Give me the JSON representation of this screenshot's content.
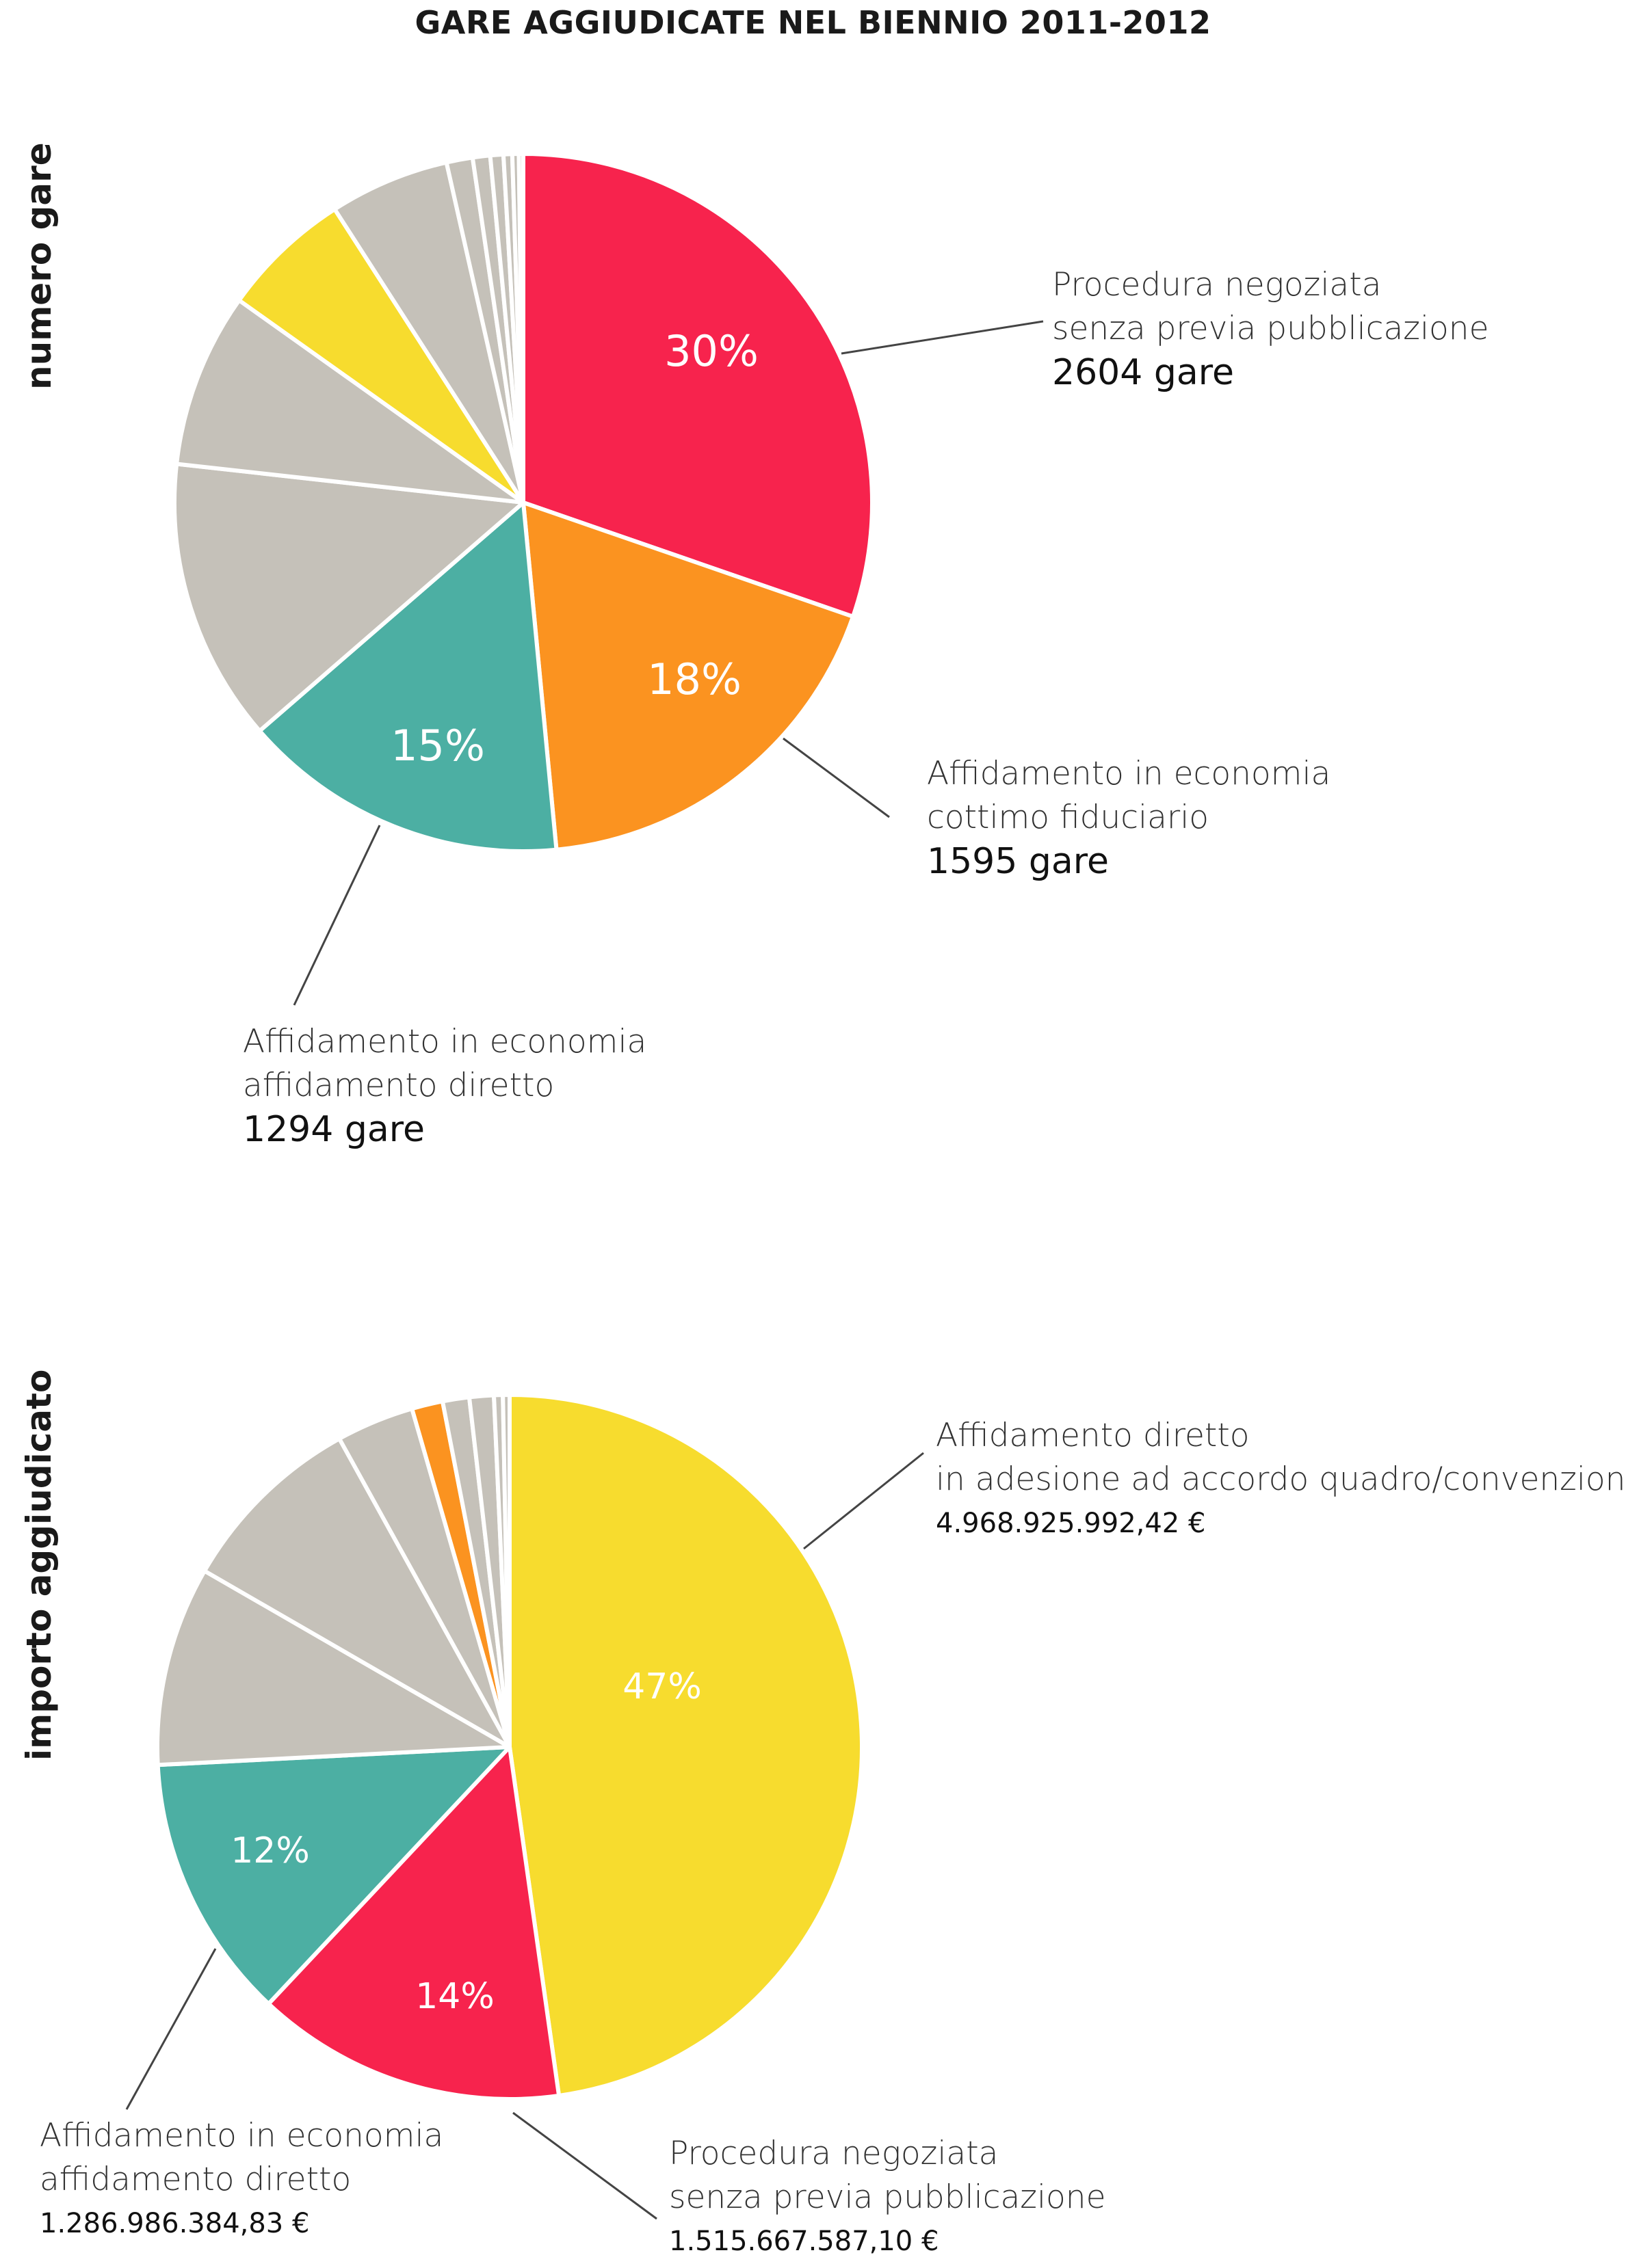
{
  "title": "GARE AGGIUDICATE NEL BIENNIO 2011-2012",
  "chart_data": [
    {
      "type": "pie",
      "side_label": "numero gare",
      "slices": [
        {
          "value": 30,
          "pct_label": "30%",
          "color": "#f7234d",
          "label": [
            "Procedura negoziata",
            "senza previa pubblicazione"
          ],
          "value_label": "2604 gare"
        },
        {
          "value": 18,
          "pct_label": "18%",
          "color": "#fb9320",
          "label": [
            "Affidamento in economia",
            "cottimo fiduciario"
          ],
          "value_label": "1595 gare"
        },
        {
          "value": 15,
          "pct_label": "15%",
          "color": "#4cafa3",
          "label": [
            "Affidamento in economia",
            "affidamento diretto"
          ],
          "value_label": "1294 gare"
        },
        {
          "value": 13,
          "color": "#c5c1b9"
        },
        {
          "value": 8,
          "color": "#c5c1b9"
        },
        {
          "value": 6,
          "color": "#f7dc2e"
        },
        {
          "value": 5.5,
          "color": "#c5c1b9"
        },
        {
          "value": 1.2,
          "color": "#c5c1b9"
        },
        {
          "value": 0.8,
          "color": "#c5c1b9"
        },
        {
          "value": 0.6,
          "color": "#c5c1b9"
        },
        {
          "value": 0.4,
          "color": "#c5c1b9"
        },
        {
          "value": 0.3,
          "color": "#c5c1b9"
        },
        {
          "value": 0.2,
          "color": "#c5c1b9"
        }
      ]
    },
    {
      "type": "pie",
      "side_label": "importo aggiudicato",
      "slices": [
        {
          "value": 47,
          "pct_label": "47%",
          "color": "#f7dc2e",
          "label": [
            "Affidamento diretto",
            "in adesione ad accordo quadro/convenzione"
          ],
          "value_label": "4.968.925.992,42 €"
        },
        {
          "value": 14,
          "pct_label": "14%",
          "color": "#f7234d",
          "label": [
            "Procedura negoziata",
            "senza previa pubblicazione"
          ],
          "value_label": "1.515.667.587,10 €"
        },
        {
          "value": 12,
          "pct_label": "12%",
          "color": "#4cafa3",
          "label": [
            "Affidamento in economia",
            "affidamento diretto"
          ],
          "value_label": "1.286.986.384,83 €"
        },
        {
          "value": 9,
          "color": "#c5c1b9"
        },
        {
          "value": 8.5,
          "color": "#c5c1b9"
        },
        {
          "value": 3.5,
          "color": "#c5c1b9"
        },
        {
          "value": 1.4,
          "color": "#fb9320"
        },
        {
          "value": 1.2,
          "color": "#c5c1b9"
        },
        {
          "value": 1.1,
          "color": "#c5c1b9"
        },
        {
          "value": 0.4,
          "color": "#c5c1b9"
        },
        {
          "value": 0.3,
          "color": "#c5c1b9"
        }
      ]
    }
  ]
}
